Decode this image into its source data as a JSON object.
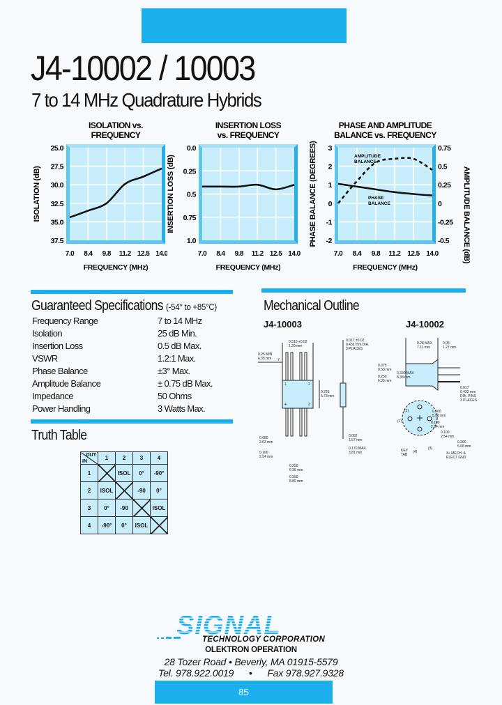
{
  "header": {
    "title": "J4-10002 / 10003",
    "subtitle": "7 to 14 MHz Quadrature Hybrids",
    "accent_color": "#1bb0ec"
  },
  "chart_data": [
    {
      "type": "line",
      "title": [
        "ISOLATION vs.",
        "FREQUENCY"
      ],
      "xlabel": "FREQUENCY (MHz)",
      "ylabel": "ISOLATION (dB)",
      "categories": [
        "7.0",
        "8.4",
        "9.8",
        "11.2",
        "12.5",
        "14.0"
      ],
      "yticks": [
        "25.0",
        "27.5",
        "30.0",
        "32.5",
        "35.0",
        "37.5"
      ],
      "ylim": [
        37.5,
        25.0
      ],
      "grid": true,
      "series": [
        {
          "values": [
            34.4,
            33.5,
            32.5,
            29.9,
            28.9,
            27.8
          ],
          "style": "solid"
        }
      ]
    },
    {
      "type": "line",
      "title": [
        "INSERTION LOSS",
        "vs. FREQUENCY"
      ],
      "xlabel": "FREQUENCY (MHz)",
      "ylabel": "INSERTION LOSS (dB)",
      "categories": [
        "7.0",
        "8.4",
        "9.8",
        "11.2",
        "12.5",
        "14.0"
      ],
      "yticks": [
        "0.0",
        "0.25",
        "0.5",
        "0.75",
        "1.0"
      ],
      "ylim": [
        1.0,
        0.0
      ],
      "grid": true,
      "series": [
        {
          "values": [
            0.42,
            0.42,
            0.42,
            0.4,
            0.45,
            0.4
          ],
          "style": "solid"
        }
      ]
    },
    {
      "type": "line",
      "title": [
        "PHASE AND AMPLITUDE",
        "BALANCE vs. FREQUENCY"
      ],
      "xlabel": "FREQUENCY (MHz)",
      "ylabel": "PHASE BALANCE (DEGREES)",
      "ylabel_right": "AMPLITUDE BALANCE (dB)",
      "categories": [
        "7.0",
        "8.4",
        "9.8",
        "11.2",
        "12.5",
        "14.0"
      ],
      "yticks": [
        "3",
        "2",
        "1",
        "0",
        "-1",
        "-2"
      ],
      "yticks_right": [
        "0.75",
        "0.5",
        "0.25",
        "0",
        "-0.25",
        "-0.5"
      ],
      "ylim": [
        -2,
        3
      ],
      "ylim_right": [
        -0.5,
        0.75
      ],
      "grid": true,
      "series": [
        {
          "name": "PHASE BALANCE",
          "axis": "left",
          "values": [
            1.05,
            0.9,
            0.75,
            0.6,
            0.5,
            0.42
          ],
          "style": "solid"
        },
        {
          "name": "AMPLITUDE BALANCE",
          "axis": "right",
          "values": [
            0.0,
            0.3,
            0.55,
            0.6,
            0.6,
            0.45
          ],
          "style": "dashed"
        }
      ],
      "annotations": {
        "amplitude": [
          "AMPLITUDE",
          "BALANCE"
        ],
        "phase": [
          "PHASE",
          "BALANCE"
        ]
      }
    }
  ],
  "specs": {
    "title": "Guaranteed Specifications",
    "temp_range": "(-54° to +85°C)",
    "rows": [
      {
        "label": "Frequency Range",
        "value": "7 to 14 MHz"
      },
      {
        "label": "Isolation",
        "value": "25 dB Min."
      },
      {
        "label": "Insertion Loss",
        "value": "0.5 dB Max."
      },
      {
        "label": "VSWR",
        "value": "1.2:1 Max."
      },
      {
        "label": "Phase Balance",
        "value": "±3° Max."
      },
      {
        "label": "Amplitude Balance",
        "value": "± 0.75 dB Max."
      },
      {
        "label": "Impedance",
        "value": "50 Ohms"
      },
      {
        "label": "Power Handling",
        "value": "3 Watts Max."
      }
    ]
  },
  "truth_table": {
    "title": "Truth Table",
    "corner_out": "OUT",
    "corner_in": "IN",
    "columns": [
      "1",
      "2",
      "3",
      "4"
    ],
    "rows": [
      {
        "in": "1",
        "cells": [
          "X",
          "ISOL",
          "0°",
          "-90°"
        ]
      },
      {
        "in": "2",
        "cells": [
          "ISOL",
          "X",
          "-90",
          "0°"
        ]
      },
      {
        "in": "3",
        "cells": [
          "0°",
          "-90",
          "X",
          "ISOL"
        ]
      },
      {
        "in": "4",
        "cells": [
          "-90°",
          "0°",
          "ISOL",
          "X"
        ]
      }
    ]
  },
  "mechanical": {
    "title": "Mechanical Outline",
    "model_a": "J4-10003",
    "model_b": "J4-10002",
    "dims_a": [
      "0.510 +0.02",
      "1.29 mm",
      "0.25 MIN",
      "6.35 mm",
      "0.017 ±0.02",
      "0.432 mm DIA.",
      "3 PLACES",
      "0.225",
      "5.73 mm",
      "0.080",
      "2.03 mm",
      "0.100",
      "2.54 mm",
      "0.250",
      "6.35 mm",
      "0.350",
      "8.89 mm",
      "0.062",
      "1.57 mm",
      "0.170 MAX",
      "3.81 mm",
      "Y"
    ],
    "dims_b": [
      "0.28 MAX",
      "7.11 mm",
      "0.05",
      "1.27 mm",
      "0.375",
      "9.53 mm",
      "0.330 MAX",
      "8.38 mm",
      "0.250",
      "6.35 mm",
      "0.017",
      "0.432 mm",
      "DIA. PINS",
      "3 PLACES",
      "0.200",
      "5.08 mm",
      "0.100",
      "2.54 mm",
      "0.100",
      "2.54 mm",
      "0.200",
      "5.08 mm",
      "KEY",
      "TAB",
      "(1)",
      "(2)",
      "(3)",
      "(4)",
      "3+ MECH. &",
      "ELECT GND"
    ],
    "pins": [
      "1",
      "2",
      "4",
      "3"
    ]
  },
  "footer": {
    "logo_text": "SIGNAL",
    "company": "TECHNOLOGY CORPORATION",
    "division": "OLEKTRON OPERATION",
    "address": "28 Tozer Road  •  Beverly, MA 01915-5579",
    "tel": "Tel. 978.922.0019",
    "sep": "•",
    "fax": "Fax 978.927.9328",
    "page_number": "85"
  }
}
